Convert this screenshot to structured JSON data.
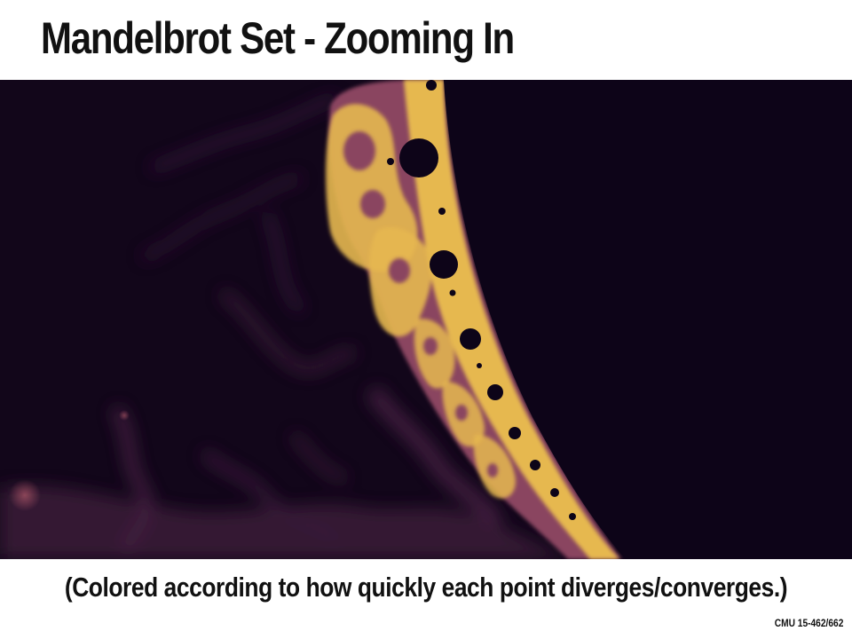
{
  "slide": {
    "title": "Mandelbrot Set - Zooming In",
    "caption": "(Colored according to how quickly each point diverges/converges.)",
    "footer": "CMU 15-462/662"
  },
  "figure": {
    "subject": "mandelbrot-set-zoom-fractal",
    "colors": {
      "background": "#12061a",
      "set_interior": "#0d0418",
      "boundary_yellow": "#e6b84f",
      "boundary_mauve": "#8a4560",
      "haze": "#3a1a38"
    }
  }
}
